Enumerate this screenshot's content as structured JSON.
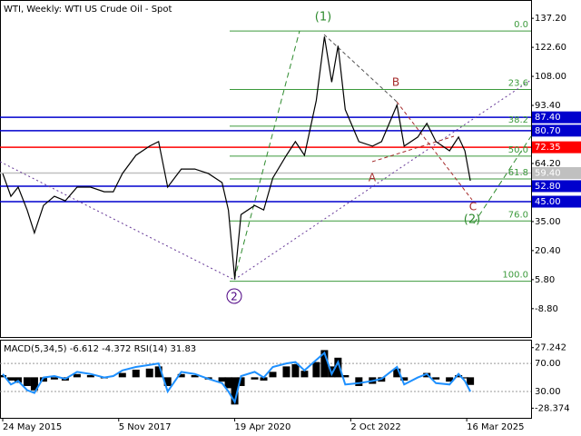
{
  "chart_data": [
    {
      "type": "line",
      "title": "WTI, Weekly:  WTI US Crude Oil - Spot",
      "x": [
        "2015-05-24",
        "2015-07-26",
        "2015-09-20",
        "2015-11-29",
        "2016-01-24",
        "2016-04-03",
        "2016-06-26",
        "2016-09-18",
        "2016-12-18",
        "2017-04-02",
        "2017-07-16",
        "2017-09-24",
        "2017-12-03",
        "2018-03-18",
        "2018-07-01",
        "2018-09-09",
        "2018-11-18",
        "2019-03-03",
        "2019-06-16",
        "2019-09-29",
        "2020-01-12",
        "2020-03-01",
        "2020-04-19",
        "2020-06-07",
        "2020-09-20",
        "2020-11-29",
        "2021-02-07",
        "2021-05-23",
        "2021-08-01",
        "2021-10-10",
        "2022-01-09",
        "2022-03-13",
        "2022-05-08",
        "2022-06-26",
        "2022-08-21",
        "2022-12-04",
        "2023-03-19",
        "2023-05-28",
        "2023-09-24",
        "2023-11-19",
        "2024-03-03",
        "2024-05-12",
        "2024-07-21",
        "2024-11-03",
        "2025-01-12",
        "2025-03-02",
        "2025-04-13"
      ],
      "values": [
        59.1,
        47.7,
        52.3,
        40.8,
        29.3,
        43.1,
        47.7,
        45.4,
        52.3,
        52.3,
        50.0,
        50.0,
        59.1,
        68.3,
        72.9,
        75.2,
        52.3,
        61.4,
        61.4,
        59.1,
        54.6,
        40.8,
        6.3,
        38.5,
        43.1,
        40.8,
        56.9,
        68.3,
        75.2,
        68.3,
        95.9,
        128.0,
        105.1,
        123.4,
        91.3,
        75.2,
        72.9,
        75.2,
        93.6,
        72.9,
        77.5,
        84.4,
        75.2,
        70.6,
        77.5,
        70.6,
        55.5
      ],
      "color": "#000000",
      "xlim": [
        "2015-05-03",
        "2026-07-26"
      ],
      "xticks": [
        {
          "value": "2015-05-24",
          "label": "24 May 2015"
        },
        {
          "value": "2017-11-05",
          "label": "5 Nov 2017"
        },
        {
          "value": "2020-04-19",
          "label": "19 Apr 2020"
        },
        {
          "value": "2022-10-02",
          "label": "2 Oct 2022"
        },
        {
          "value": "2025-03-16",
          "label": "16 Mar 2025"
        }
      ],
      "ylim": [
        -23.5,
        146.4
      ],
      "yticks": [
        {
          "value": 137.2,
          "label": "137.20"
        },
        {
          "value": 122.6,
          "label": "122.60"
        },
        {
          "value": 108,
          "label": "108.00"
        },
        {
          "value": 93.4,
          "label": "93.40"
        },
        {
          "value": 64.2,
          "label": "64.20"
        },
        {
          "value": 35,
          "label": "35.00"
        },
        {
          "value": 20.4,
          "label": "20.40"
        },
        {
          "value": 5.8,
          "label": "5.80"
        },
        {
          "value": -8.8,
          "label": "-8.80"
        }
      ],
      "levels": [
        {
          "value": 87.4,
          "label": "87.40",
          "color": "#0000cd"
        },
        {
          "value": 80.7,
          "label": "80.70",
          "color": "#0000cd"
        },
        {
          "value": 72.35,
          "label": "72.35",
          "color": "#ff0000"
        },
        {
          "value": 59.4,
          "label": "59.40",
          "color": "#c0c0c0"
        },
        {
          "value": 52.8,
          "label": "52.80",
          "color": "#0000cd"
        },
        {
          "value": 45,
          "label": "45.00",
          "color": "#0000cd"
        }
      ],
      "fib_levels": [
        {
          "value": 130.8,
          "label": "0.0"
        },
        {
          "value": 101.4,
          "label": "23.6"
        },
        {
          "value": 83.0,
          "label": "38.2"
        },
        {
          "value": 67.9,
          "label": "50.0"
        },
        {
          "value": 56.4,
          "label": "61.8"
        },
        {
          "value": 35.3,
          "label": "76.0"
        },
        {
          "value": 5.0,
          "label": "100.0"
        }
      ],
      "fib_color": "#3c9a3c",
      "annotations": [
        "(1)",
        "(2)",
        "2",
        "A",
        "B",
        "C"
      ]
    },
    {
      "type": "macd",
      "title": "MACD(5,34,5) -6.612 -4.372 RSI(14) 31.83",
      "x": [
        "2015-05-24",
        "2015-07-26",
        "2015-09-20",
        "2015-11-29",
        "2016-01-24",
        "2016-04-03",
        "2016-06-26",
        "2016-09-18",
        "2016-12-18",
        "2017-04-02",
        "2017-07-16",
        "2017-09-24",
        "2017-12-03",
        "2018-03-18",
        "2018-07-01",
        "2018-09-09",
        "2018-11-18",
        "2019-03-03",
        "2019-06-16",
        "2019-09-29",
        "2020-01-12",
        "2020-03-01",
        "2020-04-19",
        "2020-06-07",
        "2020-09-20",
        "2020-11-29",
        "2021-02-07",
        "2021-05-23",
        "2021-08-01",
        "2021-10-10",
        "2022-01-09",
        "2022-03-13",
        "2022-05-08",
        "2022-06-26",
        "2022-08-21",
        "2022-12-04",
        "2023-03-19",
        "2023-05-28",
        "2023-09-24",
        "2023-11-19",
        "2024-03-03",
        "2024-05-12",
        "2024-07-21",
        "2024-11-03",
        "2025-01-12",
        "2025-03-02",
        "2025-04-13"
      ],
      "series": [
        {
          "values": [
            2,
            -3,
            -5,
            -8,
            -12,
            -4,
            -2,
            -3,
            3,
            2,
            -1,
            0,
            4,
            7,
            8,
            10,
            -8,
            3,
            2,
            -2,
            -4,
            -10,
            -25,
            -8,
            -2,
            -3,
            5,
            10,
            12,
            6,
            14,
            25,
            10,
            18,
            2,
            -8,
            -6,
            -4,
            8,
            -3,
            0,
            4,
            -2,
            -4,
            2,
            -1,
            -7
          ],
          "color": "#000000"
        },
        {
          "values": [
            55,
            40,
            45,
            32,
            28,
            50,
            52,
            48,
            58,
            55,
            50,
            52,
            60,
            65,
            68,
            70,
            30,
            58,
            55,
            48,
            42,
            30,
            15,
            52,
            58,
            50,
            65,
            70,
            72,
            60,
            75,
            85,
            55,
            72,
            40,
            42,
            45,
            48,
            65,
            40,
            50,
            55,
            42,
            40,
            55,
            45,
            30
          ],
          "color": "#1e90ff",
          "axis": "y2"
        }
      ],
      "ylim": [
        -37.24,
        33.69
      ],
      "yticks": [
        27.242,
        -28.374
      ],
      "y2lim": [
        -7.5,
        102.5
      ],
      "y2ticks": [
        {
          "value": 70,
          "label": "70.00"
        },
        {
          "value": 30,
          "label": "30.00"
        }
      ]
    }
  ]
}
